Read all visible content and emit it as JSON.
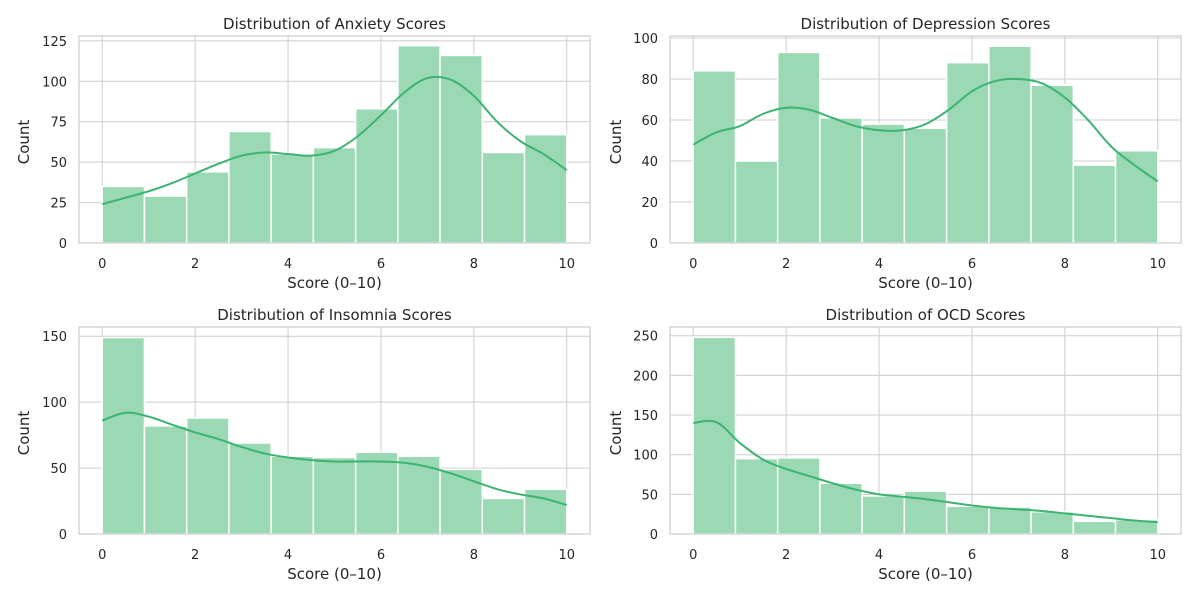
{
  "figure": {
    "background": "#ffffff"
  },
  "style": {
    "bar_fill": "#9ad9b4",
    "bar_edge": "#ffffff",
    "kde_color": "#3cb371",
    "grid_color": "#cccccc"
  },
  "chart_data": [
    {
      "type": "histogram",
      "title": "Distribution of Anxiety Scores",
      "xlabel": "Score (0–10)",
      "ylabel": "Count",
      "xlim": [
        -0.5,
        10.5
      ],
      "ylim": [
        0,
        128
      ],
      "xticks": [
        0,
        2,
        4,
        6,
        8,
        10
      ],
      "yticks": [
        0,
        25,
        50,
        75,
        100,
        125
      ],
      "bin_edges": [
        0,
        0.909,
        1.818,
        2.727,
        3.636,
        4.545,
        5.455,
        6.364,
        7.273,
        8.182,
        9.091,
        10
      ],
      "counts": [
        35,
        29,
        44,
        69,
        55,
        59,
        83,
        122,
        116,
        56,
        67
      ],
      "kde": {
        "x": [
          0,
          0.5,
          1,
          1.5,
          2,
          2.5,
          3,
          3.5,
          4,
          4.5,
          5,
          5.5,
          6,
          6.5,
          7,
          7.5,
          8,
          8.5,
          9,
          9.5,
          10
        ],
        "y": [
          24,
          28,
          32,
          37,
          43,
          49,
          54,
          56,
          55,
          54,
          57,
          66,
          79,
          93,
          102,
          101,
          91,
          75,
          63,
          55,
          45
        ]
      },
      "grid": true
    },
    {
      "type": "histogram",
      "title": "Distribution of Depression Scores",
      "xlabel": "Score (0–10)",
      "ylabel": "Count",
      "xlim": [
        -0.5,
        10.5
      ],
      "ylim": [
        0,
        101
      ],
      "xticks": [
        0,
        2,
        4,
        6,
        8,
        10
      ],
      "yticks": [
        0,
        20,
        40,
        60,
        80,
        100
      ],
      "bin_edges": [
        0,
        0.909,
        1.818,
        2.727,
        3.636,
        4.545,
        5.455,
        6.364,
        7.273,
        8.182,
        9.091,
        10
      ],
      "counts": [
        84,
        40,
        93,
        61,
        58,
        56,
        88,
        96,
        77,
        38,
        45
      ],
      "kde": {
        "x": [
          0,
          0.5,
          1,
          1.5,
          2,
          2.5,
          3,
          3.5,
          4,
          4.5,
          5,
          5.5,
          6,
          6.5,
          7,
          7.5,
          8,
          8.5,
          9,
          9.5,
          10
        ],
        "y": [
          48,
          54,
          57,
          63,
          66,
          65,
          61,
          57,
          55,
          55,
          58,
          65,
          74,
          79,
          80,
          78,
          71,
          60,
          47,
          38,
          30
        ]
      },
      "grid": true
    },
    {
      "type": "histogram",
      "title": "Distribution of Insomnia Scores",
      "xlabel": "Score (0–10)",
      "ylabel": "Count",
      "xlim": [
        -0.5,
        10.5
      ],
      "ylim": [
        0,
        157
      ],
      "xticks": [
        0,
        2,
        4,
        6,
        8,
        10
      ],
      "yticks": [
        0,
        50,
        100,
        150
      ],
      "bin_edges": [
        0,
        0.909,
        1.818,
        2.727,
        3.636,
        4.545,
        5.455,
        6.364,
        7.273,
        8.182,
        9.091,
        10
      ],
      "counts": [
        149,
        82,
        88,
        69,
        59,
        58,
        62,
        59,
        49,
        27,
        34
      ],
      "kde": {
        "x": [
          0,
          0.5,
          1,
          1.5,
          2,
          2.5,
          3,
          3.5,
          4,
          4.5,
          5,
          5.5,
          6,
          6.5,
          7,
          7.5,
          8,
          8.5,
          9,
          9.5,
          10
        ],
        "y": [
          86,
          92,
          89,
          83,
          77,
          72,
          66,
          61,
          58,
          56,
          55,
          55,
          55,
          54,
          51,
          46,
          40,
          34,
          30,
          27,
          22
        ]
      },
      "grid": true
    },
    {
      "type": "histogram",
      "title": "Distribution of OCD Scores",
      "xlabel": "Score (0–10)",
      "ylabel": "Count",
      "xlim": [
        -0.5,
        10.5
      ],
      "ylim": [
        0,
        261
      ],
      "xticks": [
        0,
        2,
        4,
        6,
        8,
        10
      ],
      "yticks": [
        0,
        50,
        100,
        150,
        200,
        250
      ],
      "bin_edges": [
        0,
        0.909,
        1.818,
        2.727,
        3.636,
        4.545,
        5.455,
        6.364,
        7.273,
        8.182,
        9.091,
        10
      ],
      "counts": [
        248,
        95,
        96,
        64,
        48,
        54,
        35,
        34,
        28,
        16,
        18
      ],
      "kde": {
        "x": [
          0,
          0.5,
          1,
          1.5,
          2,
          2.5,
          3,
          3.5,
          4,
          4.5,
          5,
          5.5,
          6,
          6.5,
          7,
          7.5,
          8,
          8.5,
          9,
          9.5,
          10
        ],
        "y": [
          140,
          141,
          115,
          94,
          82,
          73,
          64,
          56,
          50,
          47,
          44,
          40,
          36,
          33,
          31,
          29,
          26,
          23,
          20,
          17,
          15
        ]
      },
      "grid": true
    }
  ]
}
